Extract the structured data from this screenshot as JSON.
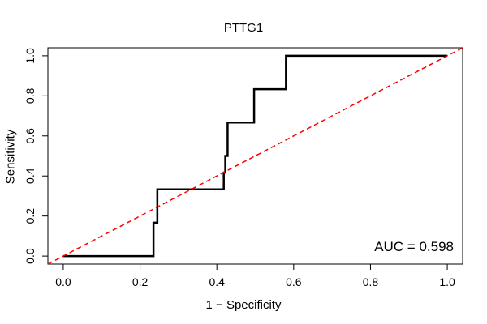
{
  "chart_data": {
    "type": "line",
    "title": "PTTG1",
    "xlabel": "1 − Specificity",
    "ylabel": "Sensitivity",
    "xlim": [
      -0.04,
      1.04
    ],
    "ylim": [
      -0.04,
      1.04
    ],
    "x_ticks": [
      "0.0",
      "0.2",
      "0.4",
      "0.6",
      "0.8",
      "1.0"
    ],
    "y_ticks": [
      "0.0",
      "0.2",
      "0.4",
      "0.6",
      "0.8",
      "1.0"
    ],
    "grid": false,
    "annotation": "AUC = 0.598",
    "series": [
      {
        "color": "#000000",
        "style": "solid",
        "x": [
          0.0,
          0.235,
          0.235,
          0.245,
          0.245,
          0.255,
          0.255,
          0.418,
          0.418,
          0.422,
          0.422,
          0.428,
          0.428,
          0.497,
          0.497,
          0.58,
          0.58,
          1.0
        ],
        "y": [
          0.0,
          0.0,
          0.167,
          0.167,
          0.333,
          0.333,
          0.333,
          0.333,
          0.417,
          0.417,
          0.5,
          0.5,
          0.667,
          0.667,
          0.833,
          0.833,
          1.0,
          1.0
        ]
      },
      {
        "color": "#ff0000",
        "style": "dashed",
        "x": [
          -0.04,
          1.04
        ],
        "y": [
          -0.04,
          1.04
        ]
      }
    ]
  }
}
